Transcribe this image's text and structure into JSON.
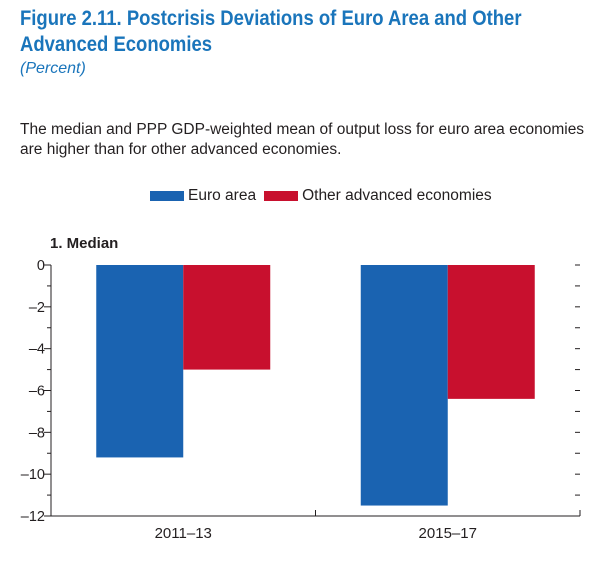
{
  "figure": {
    "title": "Figure 2.11.  Postcrisis Deviations of Euro Area and Other Advanced Economies",
    "subtitle": "(Percent)",
    "description": "The median and PPP GDP-weighted mean of output loss for euro area economies are higher than for other advanced economies."
  },
  "colors": {
    "euro": "#1a63b1",
    "other": "#c8102e",
    "title": "#1a75bb"
  },
  "chart_data": {
    "type": "bar",
    "title": "1. Median",
    "categories": [
      "2011–13",
      "2015–17"
    ],
    "series": [
      {
        "name": "Euro area",
        "values": [
          -9.2,
          -11.5
        ]
      },
      {
        "name": "Other advanced economies",
        "values": [
          -5.0,
          -6.4
        ]
      }
    ],
    "ylim": [
      -12,
      0
    ],
    "yticks": [
      "0",
      "–2",
      "–4",
      "–6",
      "–8",
      "–10",
      "–12"
    ],
    "legend_position": "top",
    "grid": false
  }
}
